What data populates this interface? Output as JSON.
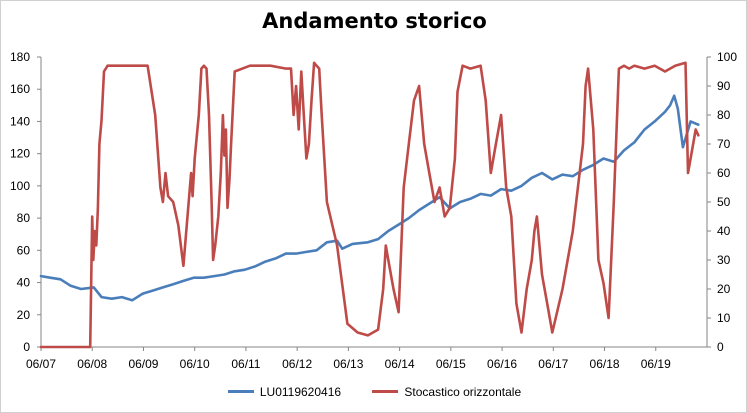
{
  "chart_data": {
    "type": "line",
    "title": "Andamento storico",
    "x": [
      "06/07",
      "06/08",
      "06/09",
      "06/10",
      "06/11",
      "06/12",
      "06/13",
      "06/14",
      "06/15",
      "06/16",
      "06/17",
      "06/18",
      "06/19"
    ],
    "xlim": [
      2007.42,
      2020.42
    ],
    "ylim": [
      0,
      180
    ],
    "yticks": [
      0,
      20,
      40,
      60,
      80,
      100,
      120,
      140,
      160,
      180
    ],
    "y2lim": [
      0,
      100
    ],
    "y2ticks": [
      0,
      10,
      20,
      30,
      40,
      50,
      60,
      70,
      80,
      90,
      100
    ],
    "grid": false,
    "legend_position": "bottom",
    "series": [
      {
        "name": "LU0119620416",
        "axis": "left",
        "color": "#4a7ebb",
        "x": [
          2007.42,
          2007.6,
          2007.8,
          2008.0,
          2008.2,
          2008.45,
          2008.6,
          2008.8,
          2009.0,
          2009.2,
          2009.4,
          2009.6,
          2009.8,
          2010.0,
          2010.2,
          2010.4,
          2010.6,
          2010.8,
          2011.0,
          2011.2,
          2011.4,
          2011.6,
          2011.8,
          2012.0,
          2012.2,
          2012.4,
          2012.6,
          2012.8,
          2013.0,
          2013.2,
          2013.3,
          2013.5,
          2013.8,
          2014.0,
          2014.2,
          2014.4,
          2014.6,
          2014.8,
          2015.0,
          2015.2,
          2015.4,
          2015.6,
          2015.8,
          2016.0,
          2016.2,
          2016.4,
          2016.6,
          2016.8,
          2017.0,
          2017.2,
          2017.4,
          2017.6,
          2017.8,
          2018.0,
          2018.2,
          2018.4,
          2018.6,
          2018.8,
          2019.0,
          2019.2,
          2019.4,
          2019.6,
          2019.7,
          2019.78,
          2019.85,
          2019.95,
          2020.1,
          2020.25
        ],
        "values": [
          44,
          43,
          42,
          38,
          36,
          37,
          31,
          30,
          31,
          29,
          33,
          35,
          37,
          39,
          41,
          43,
          43,
          44,
          45,
          47,
          48,
          50,
          53,
          55,
          58,
          58,
          59,
          60,
          65,
          66,
          61,
          64,
          65,
          67,
          72,
          76,
          80,
          85,
          89,
          93,
          86,
          90,
          92,
          95,
          94,
          98,
          97,
          100,
          105,
          108,
          104,
          107,
          106,
          110,
          113,
          117,
          115,
          122,
          127,
          135,
          140,
          146,
          150,
          156,
          148,
          124,
          140,
          138
        ]
      },
      {
        "name": "Stocastico orizzontale",
        "axis": "right",
        "color": "#be4b48",
        "x": [
          2007.42,
          2008.38,
          2008.42,
          2008.44,
          2008.47,
          2008.5,
          2008.53,
          2008.56,
          2008.6,
          2008.65,
          2008.72,
          2008.9,
          2009.2,
          2009.5,
          2009.65,
          2009.75,
          2009.8,
          2009.85,
          2009.9,
          2010.0,
          2010.1,
          2010.2,
          2010.35,
          2010.38,
          2010.42,
          2010.5,
          2010.55,
          2010.6,
          2010.65,
          2010.7,
          2010.75,
          2010.78,
          2010.82,
          2010.88,
          2010.93,
          2010.97,
          2011.0,
          2011.03,
          2011.06,
          2011.1,
          2011.13,
          2011.2,
          2011.5,
          2011.9,
          2012.2,
          2012.3,
          2012.35,
          2012.4,
          2012.45,
          2012.5,
          2012.55,
          2012.6,
          2012.65,
          2012.7,
          2012.75,
          2012.8,
          2012.85,
          2012.9,
          2013.0,
          2013.2,
          2013.4,
          2013.6,
          2013.8,
          2013.9,
          2014.0,
          2014.1,
          2014.15,
          2014.2,
          2014.3,
          2014.4,
          2014.5,
          2014.6,
          2014.7,
          2014.8,
          2014.9,
          2015.0,
          2015.1,
          2015.2,
          2015.3,
          2015.4,
          2015.5,
          2015.55,
          2015.65,
          2015.8,
          2016.0,
          2016.1,
          2016.2,
          2016.3,
          2016.4,
          2016.5,
          2016.6,
          2016.7,
          2016.8,
          2016.9,
          2017.0,
          2017.05,
          2017.1,
          2017.2,
          2017.3,
          2017.4,
          2017.6,
          2017.8,
          2017.9,
          2018.0,
          2018.05,
          2018.1,
          2018.2,
          2018.3,
          2018.4,
          2018.5,
          2018.6,
          2018.7,
          2018.8,
          2018.9,
          2019.0,
          2019.2,
          2019.4,
          2019.6,
          2019.8,
          2020.0,
          2020.05,
          2020.1,
          2020.2,
          2020.25
        ],
        "values": [
          0,
          0,
          45,
          30,
          40,
          35,
          48,
          70,
          78,
          95,
          97,
          97,
          97,
          97,
          80,
          55,
          50,
          60,
          52,
          50,
          42,
          28,
          60,
          52,
          65,
          80,
          96,
          97,
          96,
          80,
          50,
          30,
          35,
          45,
          60,
          80,
          66,
          75,
          48,
          58,
          70,
          95,
          97,
          97,
          96,
          96,
          80,
          90,
          75,
          95,
          80,
          65,
          70,
          85,
          98,
          97,
          96,
          80,
          50,
          35,
          8,
          5,
          4,
          5,
          6,
          20,
          35,
          30,
          20,
          12,
          55,
          70,
          85,
          90,
          70,
          60,
          50,
          55,
          45,
          48,
          65,
          88,
          97,
          96,
          97,
          85,
          60,
          70,
          80,
          55,
          45,
          15,
          5,
          20,
          30,
          40,
          45,
          25,
          15,
          5,
          20,
          40,
          55,
          70,
          90,
          96,
          75,
          30,
          22,
          10,
          50,
          96,
          97,
          96,
          97,
          96,
          97,
          95,
          97,
          98,
          60,
          65,
          75,
          73
        ]
      }
    ]
  },
  "legend": {
    "series1": "LU0119620416",
    "series2": "Stocastico orizzontale"
  }
}
